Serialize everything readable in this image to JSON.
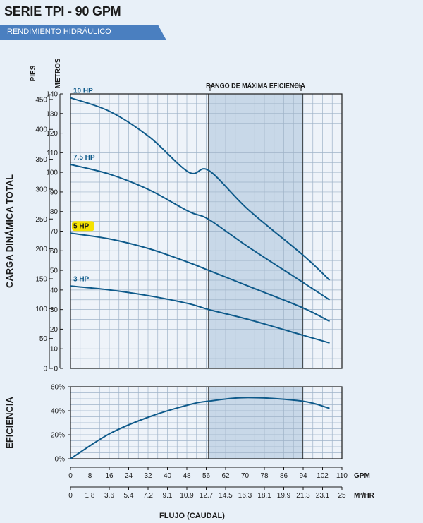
{
  "header": {
    "title": "SERIE TPI - 90 GPM",
    "subtitle": "RENDIMIENTO HIDRÁULICO"
  },
  "chart_data": [
    {
      "type": "line",
      "ylabel": "CARGA DINÁMICA TOTAL",
      "y_unit_left": "PIES",
      "y_unit_right": "METROS",
      "feet_ticks": [
        "0",
        "50",
        "100",
        "150",
        "200",
        "250",
        "300",
        "350",
        "400",
        "450"
      ],
      "meters_ticks": [
        "0",
        "10",
        "20",
        "30",
        "40",
        "50",
        "60",
        "70",
        "80",
        "90",
        "100",
        "110",
        "120",
        "130",
        "140"
      ],
      "ylim_m": [
        0,
        140
      ],
      "xlim_gpm": [
        0,
        110
      ],
      "efficiency_range_label": "RANGO DE MÁXIMA EFICIENCIA",
      "efficiency_range_gpm": [
        56,
        94
      ],
      "grid": true,
      "series": [
        {
          "name": "10 HP",
          "x": [
            0,
            16,
            32,
            48,
            56,
            72,
            94,
            105
          ],
          "y": [
            138,
            131,
            118,
            100,
            101,
            81,
            58,
            45
          ],
          "highlight": false
        },
        {
          "name": "7.5 HP",
          "x": [
            0,
            16,
            32,
            48,
            56,
            72,
            94,
            105
          ],
          "y": [
            104,
            99,
            91,
            80,
            76,
            62,
            44,
            35
          ],
          "highlight": false
        },
        {
          "name": "5 HP",
          "x": [
            0,
            16,
            32,
            48,
            56,
            72,
            94,
            105
          ],
          "y": [
            69,
            66,
            61,
            54,
            50,
            42,
            31,
            24
          ],
          "highlight": true
        },
        {
          "name": "3 HP",
          "x": [
            0,
            16,
            32,
            48,
            56,
            72,
            94,
            105
          ],
          "y": [
            42,
            40,
            37,
            33,
            30,
            25,
            17,
            13
          ],
          "highlight": false
        }
      ]
    },
    {
      "type": "line",
      "ylabel": "EFICIENCIA",
      "ytick_labels": [
        "0%",
        "20%",
        "40%",
        "60%"
      ],
      "ylim": [
        0,
        60
      ],
      "xlim_gpm": [
        0,
        110
      ],
      "efficiency_range_gpm": [
        56,
        94
      ],
      "grid": true,
      "series": [
        {
          "name": "",
          "x": [
            0,
            16,
            32,
            48,
            56,
            72,
            94,
            105
          ],
          "y": [
            0,
            21,
            35,
            45,
            48,
            51,
            48,
            42
          ]
        }
      ]
    }
  ],
  "x_axis": {
    "gpm_unit": "GPM",
    "m3hr_unit": "M³/HR",
    "xlabel": "FLUJO (CAUDAL)",
    "gpm_ticks": [
      "0",
      "8",
      "16",
      "24",
      "32",
      "40",
      "48",
      "56",
      "62",
      "70",
      "78",
      "86",
      "94",
      "102",
      "110"
    ],
    "m3hr_ticks": [
      "0",
      "1.8",
      "3.6",
      "5.4",
      "7.2",
      "9.1",
      "10.9",
      "12.7",
      "14.5",
      "16.3",
      "18.1",
      "19.9",
      "21.3",
      "23.1",
      "25"
    ]
  },
  "colors": {
    "curve": "#0e5a8a",
    "band": "#c8d8e8",
    "highlight": "#f5e200",
    "banner": "#4a7fc0"
  }
}
